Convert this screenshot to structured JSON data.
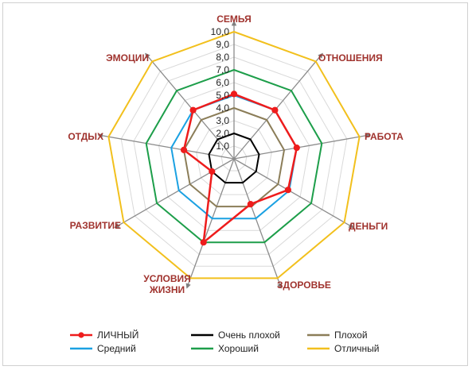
{
  "chart_data": {
    "type": "radar",
    "categories": [
      "СЕМЬЯ",
      "ОТНОШЕНИЯ",
      "РАБОТА",
      "ДЕНЬГИ",
      "ЗДОРОВЬЕ",
      "УСЛОВИЯ ЖИЗНИ",
      "РАЗВИТИЕ",
      "ОТДЫХ",
      "ЭМОЦИИ"
    ],
    "rlim": [
      0,
      10
    ],
    "ticks": [
      "1,0",
      "2,0",
      "3,0",
      "4,0",
      "5,0",
      "6,0",
      "7,0",
      "8,0",
      "9,0",
      "10,0"
    ],
    "grid": true,
    "legend_position": "bottom",
    "series": [
      {
        "name": "ЛИЧНЫЙ",
        "color": "#ee1c1c",
        "markers": true,
        "values": [
          5.1,
          5.0,
          5.0,
          4.9,
          3.8,
          7.0,
          2.0,
          4.0,
          5.0
        ]
      },
      {
        "name": "Очень плохой",
        "color": "#000000",
        "markers": false,
        "values": [
          2,
          2,
          2,
          2,
          2,
          2,
          2,
          2,
          2
        ]
      },
      {
        "name": "Плохой",
        "color": "#8b7d58",
        "markers": false,
        "values": [
          4,
          4,
          4,
          4,
          4,
          4,
          4,
          4,
          4
        ]
      },
      {
        "name": "Средний",
        "color": "#1ba1e2",
        "markers": false,
        "values": [
          5,
          5,
          5,
          5,
          5,
          5,
          5,
          5,
          5
        ]
      },
      {
        "name": "Хороший",
        "color": "#1d9e4a",
        "markers": false,
        "values": [
          7,
          7,
          7,
          7,
          7,
          7,
          7,
          7,
          7
        ]
      },
      {
        "name": "Отличный",
        "color": "#f2c01d",
        "markers": false,
        "values": [
          10,
          10,
          10,
          10,
          10,
          10,
          10,
          10,
          10
        ]
      }
    ]
  }
}
